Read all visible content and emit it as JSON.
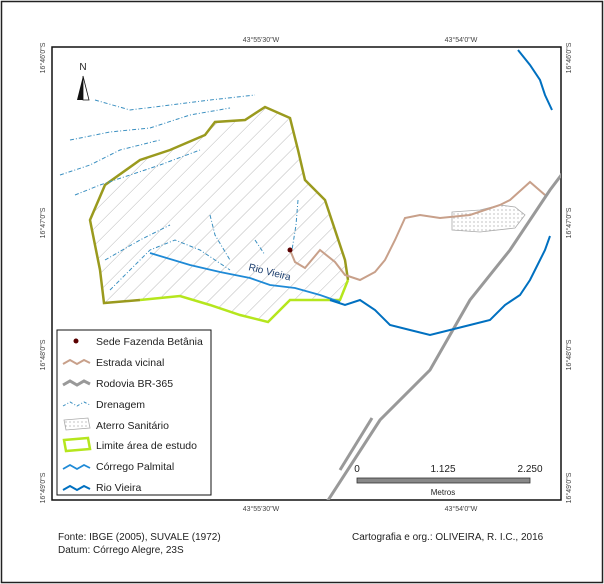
{
  "map": {
    "coordinates": {
      "top": [
        "43°55'30\"W",
        "43°54'0\"W"
      ],
      "bottom": [
        "43°55'30\"W",
        "43°54'0\"W"
      ],
      "left": [
        "16°46'0\"S",
        "16°47'0\"S",
        "16°48'0\"S",
        "16°49'0\"S"
      ],
      "right": [
        "16°46'0\"S",
        "16°47'0\"S",
        "16°48'0\"S",
        "16°49'0\"S"
      ]
    },
    "north": "N",
    "river_label": "Rio Vieira",
    "legend": [
      "Sede Fazenda Betânia",
      "Estrada vicinal",
      "Rodovia BR-365",
      "Drenagem",
      "Aterro Sanitário",
      "Limite área de estudo",
      "Córrego Palmital",
      "Rio Vieira"
    ],
    "scale": {
      "ticks": [
        "0",
        "1.125",
        "2.250"
      ],
      "unit": "Metros"
    }
  },
  "footer": {
    "source": "Fonte: IBGE (2005), SUVALE (1972)",
    "datum": "Datum: Córrego Alegre, 23S",
    "credits": "Cartografia e org.: OLIVEIRA, R. I.C., 2016"
  }
}
